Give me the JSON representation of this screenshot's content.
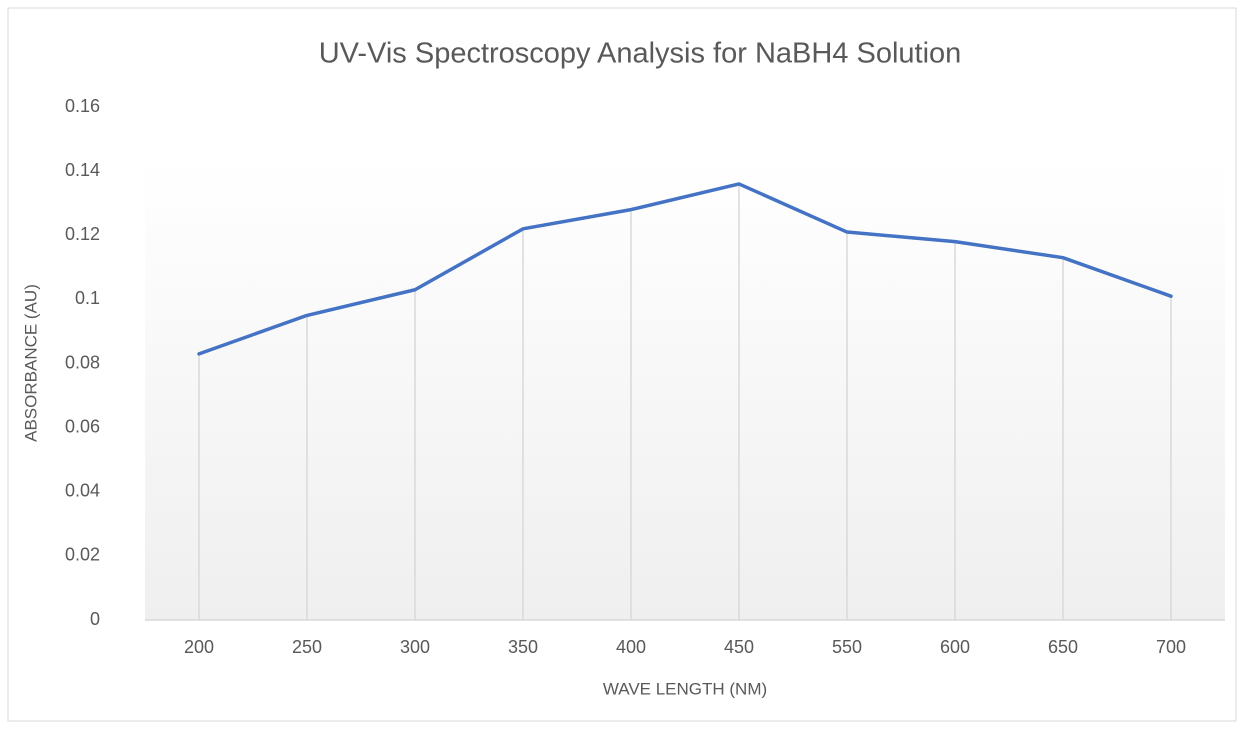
{
  "chart_data": {
    "type": "line",
    "title": "UV-Vis Spectroscopy Analysis for NaBH4 Solution",
    "x_label": "WAVE LENGTH (NM)",
    "y_label": "ABSORBANCE (AU)",
    "categories": [
      "200",
      "250",
      "300",
      "350",
      "400",
      "450",
      "550",
      "600",
      "650",
      "700"
    ],
    "values": [
      0.083,
      0.095,
      0.103,
      0.122,
      0.128,
      0.136,
      0.121,
      0.118,
      0.113,
      0.101
    ],
    "color": "#4472c4",
    "ylim": [
      0,
      0.16
    ],
    "yticks": [
      0,
      0.02,
      0.04,
      0.06,
      0.08,
      0.1,
      0.12,
      0.14,
      0.16
    ],
    "drop_lines": true,
    "grid": false
  }
}
